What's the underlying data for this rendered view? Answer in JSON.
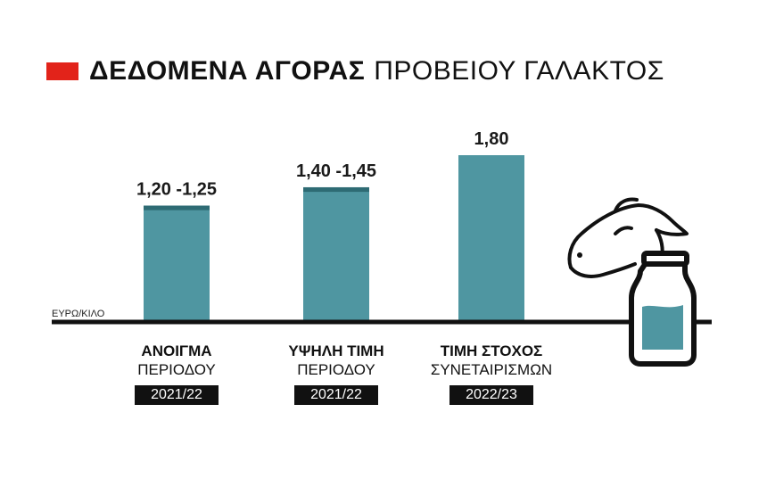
{
  "title": {
    "bold": "ΔΕΔΟΜΕΝΑ ΑΓΟΡΑΣ",
    "light": "ΠΡΟΒΕΙΟΥ ΓΑΛΑΚΤΟΣ",
    "marker_color": "#e2231a"
  },
  "colors": {
    "bar": "#4f96a1",
    "bar_band": "#2e6b74",
    "axis": "#111111",
    "milk": "#4f96a1"
  },
  "chart_data": {
    "type": "bar",
    "ylabel": "ΕΥΡΩ/ΚΙΛΟ",
    "ylim": [
      0,
      1.8
    ],
    "categories": [
      {
        "line1": "ΑΝΟΙΓΜΑ",
        "line2": "ΠΕΡΙΟΔΟΥ",
        "period": "2021/22"
      },
      {
        "line1": "ΥΨΗΛΗ ΤΙΜΗ",
        "line2": "ΠΕΡΙΟΔΟΥ",
        "period": "2021/22"
      },
      {
        "line1": "ΤΙΜΗ ΣΤΟΧΟΣ",
        "line2": "ΣΥΝΕΤΑΙΡΙΣΜΩΝ",
        "period": "2022/23"
      }
    ],
    "bars": [
      {
        "low": 1.2,
        "high": 1.25,
        "label": "1,20 -1,25"
      },
      {
        "low": 1.4,
        "high": 1.45,
        "label": "1,40 -1,45"
      },
      {
        "low": 1.8,
        "high": 1.8,
        "label": "1,80"
      }
    ]
  },
  "icons": [
    "sheep-head-icon",
    "milk-bottle-icon"
  ]
}
